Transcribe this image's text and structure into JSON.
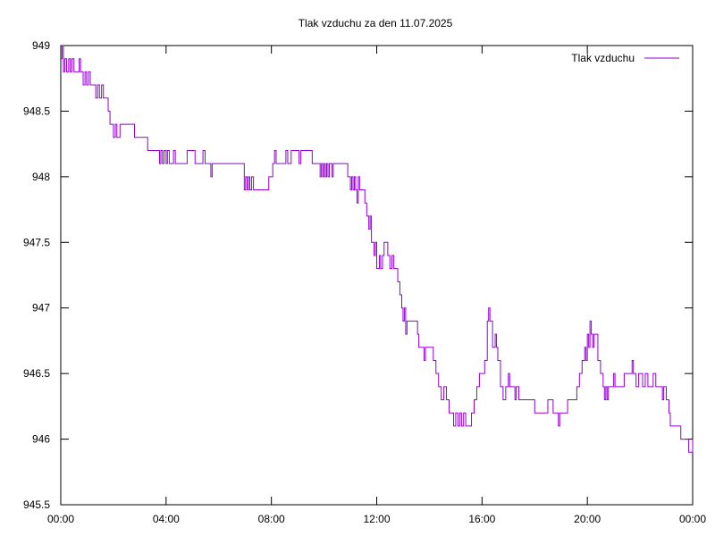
{
  "chart_data": {
    "type": "line",
    "title": "Tlak vzduchu za den 11.07.2025",
    "xlabel": "",
    "ylabel": "",
    "xlim": [
      0,
      24
    ],
    "ylim": [
      945.5,
      949
    ],
    "grid": false,
    "legend_position": "top-right",
    "x_ticks": [
      {
        "value": 0,
        "label": "00:00"
      },
      {
        "value": 4,
        "label": "04:00"
      },
      {
        "value": 8,
        "label": "08:00"
      },
      {
        "value": 12,
        "label": "12:00"
      },
      {
        "value": 16,
        "label": "16:00"
      },
      {
        "value": 20,
        "label": "20:00"
      },
      {
        "value": 24,
        "label": "00:00"
      }
    ],
    "y_ticks": [
      {
        "value": 945.5,
        "label": "945.5"
      },
      {
        "value": 946,
        "label": "946"
      },
      {
        "value": 946.5,
        "label": "946.5"
      },
      {
        "value": 947,
        "label": "947"
      },
      {
        "value": 947.5,
        "label": "947.5"
      },
      {
        "value": 948,
        "label": "948"
      },
      {
        "value": 948.5,
        "label": "948.5"
      },
      {
        "value": 949,
        "label": "949"
      }
    ],
    "series": [
      {
        "name": "Tlak vzduchu",
        "color": "#9400d3",
        "points": [
          [
            0.0,
            948.9
          ],
          [
            0.05,
            949.0
          ],
          [
            0.1,
            948.8
          ],
          [
            0.15,
            948.9
          ],
          [
            0.22,
            948.8
          ],
          [
            0.3,
            948.9
          ],
          [
            0.36,
            948.8
          ],
          [
            0.42,
            948.9
          ],
          [
            0.5,
            948.8
          ],
          [
            0.62,
            948.8
          ],
          [
            0.7,
            948.9
          ],
          [
            0.75,
            948.8
          ],
          [
            0.85,
            948.7
          ],
          [
            0.92,
            948.8
          ],
          [
            0.98,
            948.7
          ],
          [
            1.05,
            948.8
          ],
          [
            1.12,
            948.7
          ],
          [
            1.25,
            948.7
          ],
          [
            1.33,
            948.6
          ],
          [
            1.4,
            948.7
          ],
          [
            1.47,
            948.6
          ],
          [
            1.55,
            948.7
          ],
          [
            1.62,
            948.6
          ],
          [
            1.72,
            948.6
          ],
          [
            1.8,
            948.5
          ],
          [
            1.87,
            948.4
          ],
          [
            1.93,
            948.4
          ],
          [
            2.0,
            948.3
          ],
          [
            2.07,
            948.4
          ],
          [
            2.13,
            948.3
          ],
          [
            2.2,
            948.3
          ],
          [
            2.25,
            948.4
          ],
          [
            2.35,
            948.4
          ],
          [
            2.5,
            948.4
          ],
          [
            2.7,
            948.4
          ],
          [
            2.8,
            948.3
          ],
          [
            3.0,
            948.3
          ],
          [
            3.2,
            948.3
          ],
          [
            3.3,
            948.2
          ],
          [
            3.5,
            948.2
          ],
          [
            3.7,
            948.2
          ],
          [
            3.75,
            948.1
          ],
          [
            3.8,
            948.2
          ],
          [
            3.86,
            948.1
          ],
          [
            3.92,
            948.2
          ],
          [
            4.0,
            948.1
          ],
          [
            4.05,
            948.2
          ],
          [
            4.12,
            948.1
          ],
          [
            4.2,
            948.1
          ],
          [
            4.28,
            948.2
          ],
          [
            4.35,
            948.1
          ],
          [
            4.5,
            948.1
          ],
          [
            4.7,
            948.1
          ],
          [
            4.8,
            948.2
          ],
          [
            5.0,
            948.2
          ],
          [
            5.1,
            948.1
          ],
          [
            5.2,
            948.1
          ],
          [
            5.3,
            948.1
          ],
          [
            5.4,
            948.2
          ],
          [
            5.48,
            948.1
          ],
          [
            5.6,
            948.1
          ],
          [
            5.7,
            948.0
          ],
          [
            5.75,
            948.1
          ],
          [
            6.0,
            948.1
          ],
          [
            6.3,
            948.1
          ],
          [
            6.6,
            948.1
          ],
          [
            6.9,
            948.1
          ],
          [
            6.97,
            947.9
          ],
          [
            7.02,
            948.0
          ],
          [
            7.08,
            947.9
          ],
          [
            7.13,
            948.0
          ],
          [
            7.18,
            947.9
          ],
          [
            7.25,
            948.0
          ],
          [
            7.32,
            947.9
          ],
          [
            7.4,
            947.9
          ],
          [
            7.6,
            947.9
          ],
          [
            7.85,
            947.9
          ],
          [
            7.9,
            948.0
          ],
          [
            8.0,
            948.0
          ],
          [
            8.05,
            948.1
          ],
          [
            8.12,
            948.2
          ],
          [
            8.18,
            948.1
          ],
          [
            8.3,
            948.1
          ],
          [
            8.45,
            948.1
          ],
          [
            8.55,
            948.2
          ],
          [
            8.62,
            948.1
          ],
          [
            8.7,
            948.1
          ],
          [
            8.75,
            948.2
          ],
          [
            9.0,
            948.2
          ],
          [
            9.05,
            948.1
          ],
          [
            9.12,
            948.2
          ],
          [
            9.2,
            948.2
          ],
          [
            9.45,
            948.2
          ],
          [
            9.55,
            948.1
          ],
          [
            9.65,
            948.1
          ],
          [
            9.75,
            948.1
          ],
          [
            9.85,
            948.0
          ],
          [
            9.9,
            948.1
          ],
          [
            9.95,
            948.0
          ],
          [
            10.0,
            948.1
          ],
          [
            10.05,
            948.0
          ],
          [
            10.1,
            948.1
          ],
          [
            10.15,
            948.0
          ],
          [
            10.2,
            948.1
          ],
          [
            10.3,
            948.0
          ],
          [
            10.35,
            948.1
          ],
          [
            10.6,
            948.1
          ],
          [
            10.8,
            948.1
          ],
          [
            10.9,
            948.0
          ],
          [
            11.0,
            947.9
          ],
          [
            11.05,
            948.0
          ],
          [
            11.1,
            947.9
          ],
          [
            11.15,
            948.0
          ],
          [
            11.2,
            947.9
          ],
          [
            11.25,
            947.8
          ],
          [
            11.3,
            948.0
          ],
          [
            11.35,
            947.9
          ],
          [
            11.45,
            947.9
          ],
          [
            11.55,
            947.8
          ],
          [
            11.62,
            947.7
          ],
          [
            11.7,
            947.6
          ],
          [
            11.75,
            947.7
          ],
          [
            11.8,
            947.5
          ],
          [
            11.9,
            947.4
          ],
          [
            11.95,
            947.5
          ],
          [
            12.0,
            947.3
          ],
          [
            12.1,
            947.4
          ],
          [
            12.15,
            947.3
          ],
          [
            12.22,
            947.4
          ],
          [
            12.28,
            947.5
          ],
          [
            12.35,
            947.5
          ],
          [
            12.42,
            947.4
          ],
          [
            12.5,
            947.3
          ],
          [
            12.58,
            947.4
          ],
          [
            12.65,
            947.3
          ],
          [
            12.75,
            947.3
          ],
          [
            12.8,
            947.2
          ],
          [
            12.88,
            947.1
          ],
          [
            12.95,
            947.0
          ],
          [
            13.0,
            946.9
          ],
          [
            13.05,
            947.0
          ],
          [
            13.1,
            946.8
          ],
          [
            13.15,
            946.9
          ],
          [
            13.25,
            946.9
          ],
          [
            13.4,
            946.9
          ],
          [
            13.55,
            946.8
          ],
          [
            13.6,
            946.7
          ],
          [
            13.7,
            946.7
          ],
          [
            13.8,
            946.6
          ],
          [
            13.85,
            946.7
          ],
          [
            13.95,
            946.7
          ],
          [
            14.05,
            946.7
          ],
          [
            14.15,
            946.6
          ],
          [
            14.25,
            946.5
          ],
          [
            14.35,
            946.4
          ],
          [
            14.45,
            946.3
          ],
          [
            14.55,
            946.4
          ],
          [
            14.65,
            946.3
          ],
          [
            14.75,
            946.2
          ],
          [
            14.85,
            946.2
          ],
          [
            14.92,
            946.1
          ],
          [
            15.0,
            946.2
          ],
          [
            15.08,
            946.1
          ],
          [
            15.15,
            946.2
          ],
          [
            15.22,
            946.1
          ],
          [
            15.3,
            946.2
          ],
          [
            15.38,
            946.1
          ],
          [
            15.5,
            946.1
          ],
          [
            15.6,
            946.2
          ],
          [
            15.7,
            946.3
          ],
          [
            15.8,
            946.4
          ],
          [
            15.9,
            946.5
          ],
          [
            16.0,
            946.5
          ],
          [
            16.1,
            946.6
          ],
          [
            16.2,
            946.9
          ],
          [
            16.25,
            947.0
          ],
          [
            16.3,
            946.9
          ],
          [
            16.4,
            946.7
          ],
          [
            16.5,
            946.8
          ],
          [
            16.55,
            946.7
          ],
          [
            16.6,
            946.6
          ],
          [
            16.7,
            946.4
          ],
          [
            16.8,
            946.3
          ],
          [
            16.9,
            946.4
          ],
          [
            17.0,
            946.5
          ],
          [
            17.05,
            946.4
          ],
          [
            17.15,
            946.4
          ],
          [
            17.25,
            946.3
          ],
          [
            17.3,
            946.4
          ],
          [
            17.4,
            946.3
          ],
          [
            17.5,
            946.3
          ],
          [
            17.6,
            946.3
          ],
          [
            17.7,
            946.3
          ],
          [
            17.85,
            946.3
          ],
          [
            18.0,
            946.2
          ],
          [
            18.2,
            946.2
          ],
          [
            18.4,
            946.2
          ],
          [
            18.5,
            946.3
          ],
          [
            18.6,
            946.3
          ],
          [
            18.7,
            946.2
          ],
          [
            18.8,
            946.2
          ],
          [
            18.9,
            946.1
          ],
          [
            18.95,
            946.2
          ],
          [
            19.1,
            946.2
          ],
          [
            19.25,
            946.3
          ],
          [
            19.35,
            946.3
          ],
          [
            19.5,
            946.3
          ],
          [
            19.6,
            946.4
          ],
          [
            19.7,
            946.5
          ],
          [
            19.8,
            946.6
          ],
          [
            19.9,
            946.7
          ],
          [
            19.95,
            946.6
          ],
          [
            20.0,
            946.8
          ],
          [
            20.05,
            946.7
          ],
          [
            20.1,
            946.9
          ],
          [
            20.15,
            946.8
          ],
          [
            20.2,
            946.7
          ],
          [
            20.25,
            946.8
          ],
          [
            20.3,
            946.8
          ],
          [
            20.4,
            946.6
          ],
          [
            20.5,
            946.5
          ],
          [
            20.6,
            946.4
          ],
          [
            20.65,
            946.3
          ],
          [
            20.7,
            946.4
          ],
          [
            20.75,
            946.3
          ],
          [
            20.8,
            946.4
          ],
          [
            20.9,
            946.4
          ],
          [
            21.0,
            946.5
          ],
          [
            21.05,
            946.4
          ],
          [
            21.15,
            946.4
          ],
          [
            21.3,
            946.4
          ],
          [
            21.4,
            946.5
          ],
          [
            21.5,
            946.5
          ],
          [
            21.6,
            946.5
          ],
          [
            21.7,
            946.6
          ],
          [
            21.75,
            946.5
          ],
          [
            21.8,
            946.5
          ],
          [
            21.85,
            946.4
          ],
          [
            21.95,
            946.5
          ],
          [
            22.1,
            946.4
          ],
          [
            22.2,
            946.5
          ],
          [
            22.3,
            946.4
          ],
          [
            22.4,
            946.4
          ],
          [
            22.5,
            946.5
          ],
          [
            22.6,
            946.4
          ],
          [
            22.7,
            946.4
          ],
          [
            22.8,
            946.4
          ],
          [
            22.85,
            946.3
          ],
          [
            22.9,
            946.4
          ],
          [
            23.0,
            946.3
          ],
          [
            23.1,
            946.2
          ],
          [
            23.15,
            946.1
          ],
          [
            23.25,
            946.1
          ],
          [
            23.4,
            946.1
          ],
          [
            23.55,
            946.0
          ],
          [
            23.7,
            946.0
          ],
          [
            23.85,
            945.9
          ],
          [
            24.0,
            946.0
          ]
        ]
      }
    ]
  }
}
